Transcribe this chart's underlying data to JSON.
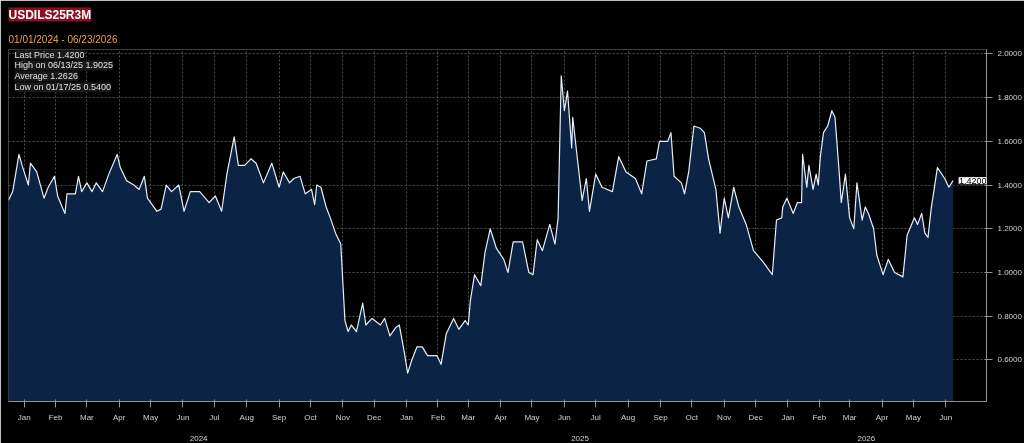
{
  "chart_data": {
    "type": "area",
    "title": "USDILS25R3M",
    "subtitle": "01/01/2024 - 06/23/2026",
    "x": [
      "2024-01-01",
      "2024-01-05",
      "2024-01-11",
      "2024-01-14",
      "2024-01-20",
      "2024-01-22",
      "2024-01-28",
      "2024-02-04",
      "2024-02-08",
      "2024-02-14",
      "2024-02-17",
      "2024-02-24",
      "2024-02-26",
      "2024-03-05",
      "2024-03-08",
      "2024-03-11",
      "2024-03-16",
      "2024-03-21",
      "2024-03-25",
      "2024-03-31",
      "2024-04-06",
      "2024-04-14",
      "2024-04-17",
      "2024-04-23",
      "2024-04-30",
      "2024-05-05",
      "2024-05-10",
      "2024-05-13",
      "2024-05-22",
      "2024-05-26",
      "2024-05-31",
      "2024-06-05",
      "2024-06-12",
      "2024-06-17",
      "2024-06-23",
      "2024-07-02",
      "2024-07-11",
      "2024-07-17",
      "2024-07-23",
      "2024-07-28",
      "2024-08-04",
      "2024-08-08",
      "2024-08-14",
      "2024-08-20",
      "2024-08-25",
      "2024-09-01",
      "2024-09-09",
      "2024-09-16",
      "2024-09-20",
      "2024-09-26",
      "2024-09-30",
      "2024-10-06",
      "2024-10-11",
      "2024-10-17",
      "2024-10-20",
      "2024-10-22",
      "2024-10-26",
      "2024-10-31",
      "2024-11-04",
      "2024-11-09",
      "2024-11-14",
      "2024-11-18",
      "2024-11-21",
      "2024-11-24",
      "2024-11-29",
      "2024-12-05",
      "2024-12-08",
      "2024-12-14",
      "2024-12-22",
      "2024-12-26",
      "2024-12-31",
      "2025-01-06",
      "2025-01-09",
      "2025-01-14",
      "2025-01-17",
      "2025-01-21",
      "2025-01-26",
      "2025-01-31",
      "2025-02-05",
      "2025-02-14",
      "2025-02-18",
      "2025-02-23",
      "2025-03-02",
      "2025-03-07",
      "2025-03-13",
      "2025-03-16",
      "2025-03-18",
      "2025-03-22",
      "2025-03-28",
      "2025-04-01",
      "2025-04-06",
      "2025-04-12",
      "2025-04-19",
      "2025-04-23",
      "2025-04-28",
      "2025-05-07",
      "2025-05-13",
      "2025-05-17",
      "2025-05-21",
      "2025-05-26",
      "2025-06-02",
      "2025-06-07",
      "2025-06-10",
      "2025-06-13",
      "2025-06-16",
      "2025-06-19",
      "2025-06-23",
      "2025-06-24",
      "2025-06-28",
      "2025-07-03",
      "2025-07-07",
      "2025-07-10",
      "2025-07-16",
      "2025-07-22",
      "2025-08-01",
      "2025-08-07",
      "2025-08-14",
      "2025-08-23",
      "2025-08-29",
      "2025-09-03",
      "2025-09-12",
      "2025-09-15",
      "2025-09-23",
      "2025-09-26",
      "2025-09-29",
      "2025-10-06",
      "2025-10-09",
      "2025-10-13",
      "2025-10-18",
      "2025-10-24",
      "2025-10-28",
      "2025-11-01",
      "2025-11-08",
      "2025-11-12",
      "2025-11-16",
      "2025-11-20",
      "2025-11-25",
      "2025-11-30",
      "2025-12-07",
      "2025-12-14",
      "2025-12-23",
      "2026-01-01",
      "2026-01-05",
      "2026-01-10",
      "2026-01-11",
      "2026-01-15",
      "2026-01-21",
      "2026-01-25",
      "2026-01-29",
      "2026-01-30",
      "2026-02-03",
      "2026-02-05",
      "2026-02-09",
      "2026-02-12",
      "2026-02-14",
      "2026-02-16",
      "2026-02-19",
      "2026-02-23",
      "2026-02-27",
      "2026-03-02",
      "2026-03-06",
      "2026-03-08",
      "2026-03-12",
      "2026-03-16",
      "2026-03-20",
      "2026-03-23",
      "2026-03-28",
      "2026-03-31",
      "2026-04-03",
      "2026-04-08",
      "2026-04-11",
      "2026-04-17",
      "2026-04-22",
      "2026-04-28",
      "2026-05-06",
      "2026-05-10",
      "2026-05-17",
      "2026-05-20",
      "2026-05-24",
      "2026-05-27",
      "2026-05-30",
      "2026-06-02",
      "2026-06-08",
      "2026-06-15",
      "2026-06-19",
      "2026-06-23"
    ],
    "series": [
      {
        "color": "#0b2446",
        "values": [
          1.33,
          1.37,
          1.54,
          1.49,
          1.4,
          1.5,
          1.46,
          1.34,
          1.39,
          1.44,
          1.35,
          1.27,
          1.36,
          1.36,
          1.44,
          1.37,
          1.41,
          1.37,
          1.41,
          1.37,
          1.45,
          1.54,
          1.48,
          1.42,
          1.4,
          1.38,
          1.44,
          1.34,
          1.28,
          1.29,
          1.4,
          1.37,
          1.4,
          1.28,
          1.37,
          1.37,
          1.32,
          1.35,
          1.28,
          1.45,
          1.62,
          1.49,
          1.49,
          1.52,
          1.5,
          1.41,
          1.5,
          1.39,
          1.46,
          1.41,
          1.43,
          1.44,
          1.36,
          1.38,
          1.31,
          1.4,
          1.39,
          1.3,
          1.25,
          1.18,
          1.13,
          0.78,
          0.73,
          0.76,
          0.73,
          0.86,
          0.76,
          0.79,
          0.76,
          0.79,
          0.71,
          0.75,
          0.76,
          0.63,
          0.54,
          0.6,
          0.66,
          0.66,
          0.62,
          0.62,
          0.58,
          0.72,
          0.79,
          0.74,
          0.78,
          0.76,
          0.87,
          0.99,
          0.94,
          1.09,
          1.2,
          1.11,
          1.06,
          1.0,
          1.14,
          1.14,
          1.0,
          0.99,
          1.15,
          1.1,
          1.22,
          1.13,
          1.25,
          1.9,
          1.74,
          1.83,
          1.57,
          1.71,
          1.54,
          1.33,
          1.43,
          1.28,
          1.45,
          1.39,
          1.37,
          1.53,
          1.46,
          1.43,
          1.36,
          1.51,
          1.52,
          1.6,
          1.6,
          1.64,
          1.44,
          1.41,
          1.36,
          1.46,
          1.67,
          1.66,
          1.64,
          1.52,
          1.38,
          1.18,
          1.34,
          1.25,
          1.39,
          1.3,
          1.22,
          1.1,
          1.05,
          0.99,
          1.24,
          1.25,
          1.3,
          1.34,
          1.27,
          1.32,
          1.32,
          1.54,
          1.39,
          1.49,
          1.38,
          1.45,
          1.4,
          1.53,
          1.64,
          1.67,
          1.74,
          1.71,
          1.46,
          1.32,
          1.45,
          1.25,
          1.2,
          1.41,
          1.24,
          1.3,
          1.27,
          1.2,
          1.08,
          0.99,
          1.06,
          1.0,
          0.98,
          1.17,
          1.25,
          1.22,
          1.27,
          1.18,
          1.16,
          1.29,
          1.48,
          1.43,
          1.39,
          1.42
        ]
      }
    ],
    "xlim": [
      "2024-01-01",
      "2026-07-25"
    ],
    "xticks": [
      {
        "value": "2024-01-16",
        "label": "Jan"
      },
      {
        "value": "2024-02-15",
        "label": "Feb"
      },
      {
        "value": "2024-03-16",
        "label": "Mar"
      },
      {
        "value": "2024-04-16",
        "label": "Apr"
      },
      {
        "value": "2024-05-16",
        "label": "May"
      },
      {
        "value": "2024-06-16",
        "label": "Jun"
      },
      {
        "value": "2024-07-16",
        "label": "Jul"
      },
      {
        "value": "2024-08-16",
        "label": "Aug"
      },
      {
        "value": "2024-09-16",
        "label": "Sep"
      },
      {
        "value": "2024-10-16",
        "label": "Oct"
      },
      {
        "value": "2024-11-16",
        "label": "Nov"
      },
      {
        "value": "2024-12-16",
        "label": "Dec"
      },
      {
        "value": "2025-01-16",
        "label": "Jan"
      },
      {
        "value": "2025-02-15",
        "label": "Feb"
      },
      {
        "value": "2025-03-16",
        "label": "Mar"
      },
      {
        "value": "2025-04-16",
        "label": "Apr"
      },
      {
        "value": "2025-05-16",
        "label": "May"
      },
      {
        "value": "2025-06-16",
        "label": "Jun"
      },
      {
        "value": "2025-07-16",
        "label": "Jul"
      },
      {
        "value": "2025-08-16",
        "label": "Aug"
      },
      {
        "value": "2025-09-16",
        "label": "Sep"
      },
      {
        "value": "2025-10-16",
        "label": "Oct"
      },
      {
        "value": "2025-11-16",
        "label": "Nov"
      },
      {
        "value": "2025-12-16",
        "label": "Dec"
      },
      {
        "value": "2026-01-16",
        "label": "Jan"
      },
      {
        "value": "2026-02-15",
        "label": "Feb"
      },
      {
        "value": "2026-03-16",
        "label": "Mar"
      },
      {
        "value": "2026-04-16",
        "label": "Apr"
      },
      {
        "value": "2026-05-16",
        "label": "May"
      },
      {
        "value": "2026-06-16",
        "label": "Jun"
      }
    ],
    "x2lim": [
      "2024-01-01",
      "2026-07-25"
    ],
    "x2ticks": [
      {
        "value": "2024-07-01",
        "label": "2024"
      },
      {
        "value": "2025-07-01",
        "label": "2025"
      },
      {
        "value": "2026-04-01",
        "label": "2026"
      }
    ],
    "ylim": [
      0.41,
      2.02
    ],
    "yticks": [
      {
        "value": 0.6,
        "label": "0.6000"
      },
      {
        "value": 0.8,
        "label": "0.8000"
      },
      {
        "value": 1.0,
        "label": "1.0000"
      },
      {
        "value": 1.2,
        "label": "1.2000"
      },
      {
        "value": 1.4,
        "label": "1.4000"
      },
      {
        "value": 1.6,
        "label": "1.6000"
      },
      {
        "value": 1.8,
        "label": "1.8000"
      },
      {
        "value": 2.0,
        "label": "2.0000"
      }
    ],
    "grid": true,
    "annotations": [
      "Last Price 1.4200",
      "High on 06/13/25 1.9025",
      "Average 1.2626",
      "Low on 01/17/25 0.5400",
      {
        "text": "1.4200",
        "x": "2026-06-23",
        "y": 1.42
      }
    ]
  }
}
